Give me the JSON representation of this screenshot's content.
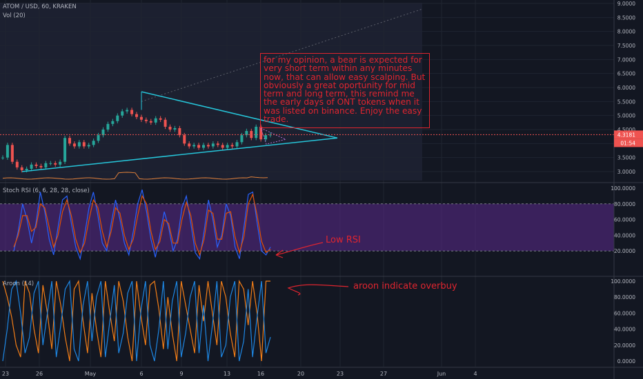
{
  "header": {
    "symbol_line": "ATOM / USD, 60, KRAKEN",
    "vol_label": "Vol (20)",
    "stoch_label": "Stoch RSI (6, 6, 28, 28, close)",
    "aroon_label": "Aroon (14)"
  },
  "price_badges": {
    "last": "4.3181",
    "countdown": "01:54"
  },
  "annotations": {
    "note": "for my opinion, a bear is expected for very short term within any minutes now, that can allow easy scalping. But obviously a great oportunity for mid term and long term, this remind me the early days of ONT tokens when it was listed on binance. Enjoy the easy trade.",
    "low_rsi": "Low RSI",
    "aroon": "aroon indicate overbuy"
  },
  "colors": {
    "background": "#131722",
    "grid": "#1f2430",
    "trendline": "#26c6da",
    "annotation": "#e0252f",
    "aroon_up": "#f57f17",
    "aroon_down": "#1e88e5",
    "stoch_k": "#2962ff",
    "stoch_d": "#e65100",
    "stoch_band": "#5b2a8c",
    "volume_ma": "#e0803a"
  },
  "chart_data": [
    {
      "type": "line",
      "series_kind": "candlestick",
      "x_tick_labels": [
        "23",
        "26",
        "May",
        "6",
        "9",
        "13",
        "16",
        "20",
        "23",
        "27",
        "Jun",
        "4"
      ],
      "y_tick_labels": [
        "3.0000",
        "3.5000",
        "4.0000",
        "4.5000",
        "5.0000",
        "5.5000",
        "6.0000",
        "6.5000",
        "7.0000",
        "7.5000",
        "8.0000",
        "8.5000",
        "9.0000"
      ],
      "ylim": [
        2.75,
        9.1
      ],
      "closes": [
        3.5,
        3.95,
        3.35,
        3.15,
        3.05,
        3.1,
        3.25,
        3.2,
        3.15,
        3.3,
        3.3,
        3.25,
        3.35,
        4.2,
        4.0,
        3.9,
        4.05,
        3.9,
        3.95,
        4.1,
        4.3,
        4.5,
        4.7,
        4.8,
        5.0,
        5.15,
        5.2,
        5.05,
        4.95,
        4.85,
        4.8,
        4.75,
        4.9,
        4.85,
        4.6,
        4.5,
        4.55,
        4.3,
        4.0,
        3.9,
        3.95,
        3.85,
        3.95,
        3.9,
        4.0,
        3.95,
        3.85,
        3.95,
        3.9,
        4.05,
        4.3,
        4.45,
        4.2,
        4.6,
        4.15,
        4.3,
        4.3181
      ],
      "last_price": 4.3181,
      "triangle": {
        "upper_start": 5.85,
        "lower_start": 3.0,
        "apex": 4.2
      }
    },
    {
      "type": "line",
      "name": "Stoch RSI",
      "y_tick_labels": [
        "20.0000",
        "40.0000",
        "60.0000",
        "80.0000",
        "100.0000"
      ],
      "ylim": [
        0,
        100
      ],
      "band": [
        20,
        80
      ],
      "k": [
        20,
        45,
        80,
        60,
        30,
        55,
        95,
        70,
        35,
        15,
        50,
        85,
        90,
        55,
        25,
        10,
        40,
        75,
        95,
        65,
        30,
        20,
        55,
        85,
        60,
        30,
        15,
        45,
        80,
        98,
        70,
        35,
        12,
        40,
        70,
        50,
        20,
        35,
        75,
        90,
        55,
        18,
        10,
        45,
        85,
        60,
        25,
        40,
        80,
        65,
        25,
        10,
        50,
        92,
        95,
        55,
        20,
        15,
        25
      ],
      "d": [
        25,
        40,
        65,
        65,
        45,
        50,
        80,
        75,
        50,
        25,
        40,
        70,
        85,
        65,
        35,
        18,
        30,
        60,
        85,
        75,
        45,
        25,
        45,
        75,
        68,
        40,
        22,
        35,
        65,
        90,
        80,
        45,
        22,
        32,
        60,
        55,
        30,
        30,
        60,
        82,
        65,
        30,
        15,
        35,
        72,
        68,
        35,
        35,
        68,
        70,
        38,
        18,
        38,
        80,
        92,
        65,
        32,
        18,
        22
      ]
    },
    {
      "type": "line",
      "name": "Aroon",
      "y_tick_labels": [
        "0.0000",
        "20.0000",
        "40.0000",
        "60.0000",
        "80.0000",
        "100.0000"
      ],
      "ylim": [
        0,
        100
      ],
      "up": [
        100,
        80,
        55,
        20,
        5,
        100,
        85,
        40,
        10,
        95,
        60,
        15,
        100,
        70,
        30,
        0,
        90,
        100,
        50,
        10,
        85,
        40,
        5,
        100,
        60,
        25,
        100,
        75,
        30,
        0,
        100,
        55,
        20,
        95,
        100,
        65,
        15,
        80,
        35,
        0,
        100,
        70,
        40,
        10,
        95,
        50,
        100,
        60,
        20,
        100,
        80,
        35,
        5,
        100,
        90,
        45,
        100,
        60,
        0,
        100,
        100
      ],
      "down": [
        0,
        40,
        90,
        100,
        60,
        10,
        30,
        85,
        100,
        20,
        60,
        100,
        5,
        45,
        90,
        100,
        15,
        0,
        70,
        100,
        25,
        80,
        100,
        5,
        50,
        95,
        10,
        35,
        85,
        100,
        0,
        65,
        100,
        20,
        0,
        40,
        100,
        15,
        75,
        100,
        5,
        35,
        80,
        100,
        10,
        70,
        0,
        45,
        100,
        5,
        20,
        80,
        100,
        0,
        25,
        90,
        5,
        55,
        100,
        10,
        30
      ]
    }
  ]
}
